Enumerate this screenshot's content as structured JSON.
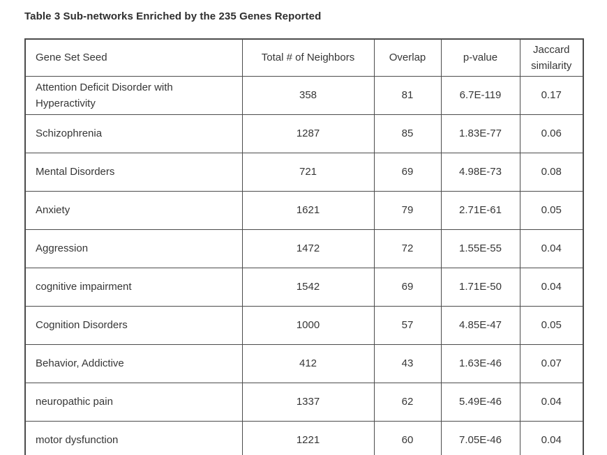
{
  "title": "Table 3 Sub-networks Enriched by the 235 Genes Reported",
  "table": {
    "columns": [
      "Gene Set Seed",
      "Total # of Neighbors",
      "Overlap",
      "p-value",
      "Jaccard similarity"
    ],
    "rows": [
      {
        "gene_set_seed": "Attention Deficit Disorder with Hyperactivity",
        "total_neighbors": "358",
        "overlap": "81",
        "p_value": "6.7E-119",
        "jaccard": "0.17"
      },
      {
        "gene_set_seed": "Schizophrenia",
        "total_neighbors": "1287",
        "overlap": "85",
        "p_value": "1.83E-77",
        "jaccard": "0.06"
      },
      {
        "gene_set_seed": "Mental Disorders",
        "total_neighbors": "721",
        "overlap": "69",
        "p_value": "4.98E-73",
        "jaccard": "0.08"
      },
      {
        "gene_set_seed": "Anxiety",
        "total_neighbors": "1621",
        "overlap": "79",
        "p_value": "2.71E-61",
        "jaccard": "0.05"
      },
      {
        "gene_set_seed": "Aggression",
        "total_neighbors": "1472",
        "overlap": "72",
        "p_value": "1.55E-55",
        "jaccard": "0.04"
      },
      {
        "gene_set_seed": "cognitive impairment",
        "total_neighbors": "1542",
        "overlap": "69",
        "p_value": "1.71E-50",
        "jaccard": "0.04"
      },
      {
        "gene_set_seed": "Cognition Disorders",
        "total_neighbors": "1000",
        "overlap": "57",
        "p_value": "4.85E-47",
        "jaccard": "0.05"
      },
      {
        "gene_set_seed": "Behavior, Addictive",
        "total_neighbors": "412",
        "overlap": "43",
        "p_value": "1.63E-46",
        "jaccard": "0.07"
      },
      {
        "gene_set_seed": "neuropathic pain",
        "total_neighbors": "1337",
        "overlap": "62",
        "p_value": "5.49E-46",
        "jaccard": "0.04"
      },
      {
        "gene_set_seed": "motor dysfunction",
        "total_neighbors": "1221",
        "overlap": "60",
        "p_value": "7.05E-46",
        "jaccard": "0.04"
      }
    ]
  },
  "colors": {
    "border": "#4b4b4b",
    "text": "#363636",
    "background": "#ffffff"
  }
}
